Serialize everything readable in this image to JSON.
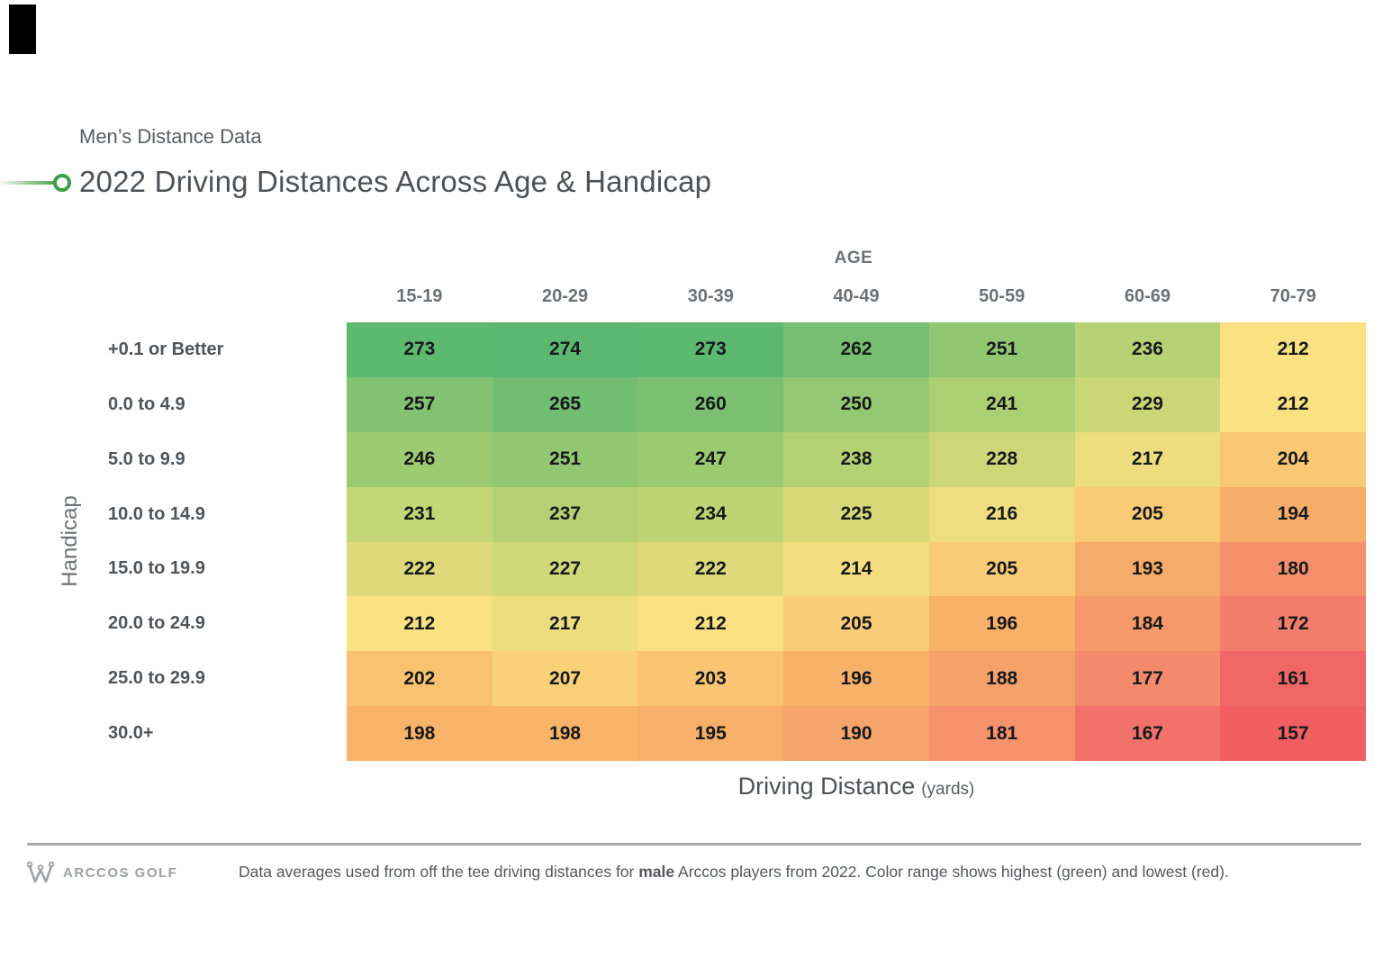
{
  "header": {
    "eyebrow": "Men’s Distance Data",
    "title": "2022 Driving Distances Across Age & Handicap"
  },
  "chart_data": {
    "type": "heatmap",
    "x_group_label": "AGE",
    "columns": [
      "15-19",
      "20-29",
      "30-39",
      "40-49",
      "50-59",
      "60-69",
      "70-79"
    ],
    "rows": [
      "+0.1 or Better",
      "0.0 to 4.9",
      "5.0 to 9.9",
      "10.0 to 14.9",
      "15.0 to 19.9",
      "20.0 to 24.9",
      "25.0 to 29.9",
      "30.0+"
    ],
    "values": [
      [
        273,
        274,
        273,
        262,
        251,
        236,
        212
      ],
      [
        257,
        265,
        260,
        250,
        241,
        229,
        212
      ],
      [
        246,
        251,
        247,
        238,
        228,
        217,
        204
      ],
      [
        231,
        237,
        234,
        225,
        216,
        205,
        194
      ],
      [
        222,
        227,
        222,
        214,
        205,
        193,
        180
      ],
      [
        212,
        217,
        212,
        205,
        196,
        184,
        172
      ],
      [
        202,
        207,
        203,
        196,
        188,
        177,
        161
      ],
      [
        198,
        198,
        195,
        190,
        181,
        167,
        157
      ]
    ],
    "xlabel": "Driving Distance",
    "xlabel_unit": "(yards)",
    "ylabel": "Handicap",
    "value_domain": [
      157,
      274
    ],
    "legend": "none",
    "colormap": [
      {
        "t": 0.0,
        "color": "#f15f63"
      },
      {
        "t": 0.09,
        "color": "#f2726a"
      },
      {
        "t": 0.17,
        "color": "#f48a6c"
      },
      {
        "t": 0.35,
        "color": "#f8b569"
      },
      {
        "t": 0.47,
        "color": "#fae182"
      },
      {
        "t": 0.56,
        "color": "#ddd97a"
      },
      {
        "t": 0.63,
        "color": "#c5d675"
      },
      {
        "t": 0.76,
        "color": "#9ecb71"
      },
      {
        "t": 0.87,
        "color": "#7fc073"
      },
      {
        "t": 1.0,
        "color": "#5cb870"
      }
    ]
  },
  "accent": {
    "title_bullet_green": "#3da047",
    "highest_color": "#5cb870",
    "lowest_color": "#f15f63"
  },
  "footer": {
    "brand": "ARCCOS GOLF",
    "note_prefix": "Data averages used from off the tee driving distances for ",
    "note_bold": "male",
    "note_suffix": " Arccos players from 2022. Color range shows highest (green) and lowest (red)."
  }
}
